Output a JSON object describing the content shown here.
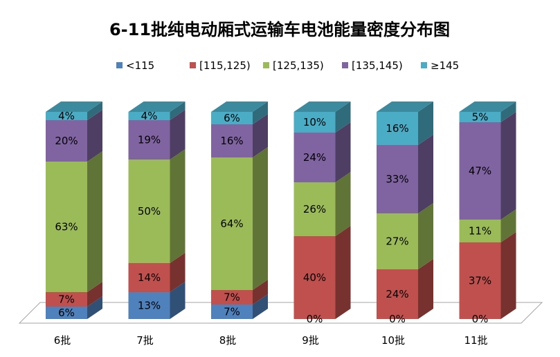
{
  "chart_data": {
    "type": "bar",
    "stacked": true,
    "percent": true,
    "three_d": true,
    "title": "6-11批纯电动厢式运输车电池能量密度分布图",
    "categories": [
      "6批",
      "7批",
      "8批",
      "9批",
      "10批",
      "11批"
    ],
    "series": [
      {
        "name": "<115",
        "color": "#4F81BD",
        "values": [
          6,
          13,
          7,
          0,
          0,
          0
        ],
        "labels": [
          "6%",
          "13%",
          "7%",
          "0%",
          "0%",
          "0%"
        ]
      },
      {
        "name": "[115,125)",
        "color": "#C0504D",
        "values": [
          7,
          14,
          7,
          40,
          24,
          37
        ],
        "labels": [
          "7%",
          "14%",
          "7%",
          "40%",
          "24%",
          "37%"
        ]
      },
      {
        "name": "[125,135)",
        "color": "#9BBB59",
        "values": [
          63,
          50,
          64,
          26,
          27,
          11
        ],
        "labels": [
          "63%",
          "50%",
          "64%",
          "26%",
          "27%",
          "11%"
        ]
      },
      {
        "name": "[135,145)",
        "color": "#8064A2",
        "values": [
          20,
          19,
          16,
          24,
          33,
          47
        ],
        "labels": [
          "20%",
          "19%",
          "16%",
          "24%",
          "33%",
          "47%"
        ]
      },
      {
        "name": "≥145",
        "color": "#4BACC6",
        "values": [
          4,
          4,
          6,
          10,
          16,
          5
        ],
        "labels": [
          "4%",
          "4%",
          "6%",
          "10%",
          "16%",
          "5%"
        ]
      }
    ],
    "legend_position": "top",
    "grid": false
  }
}
